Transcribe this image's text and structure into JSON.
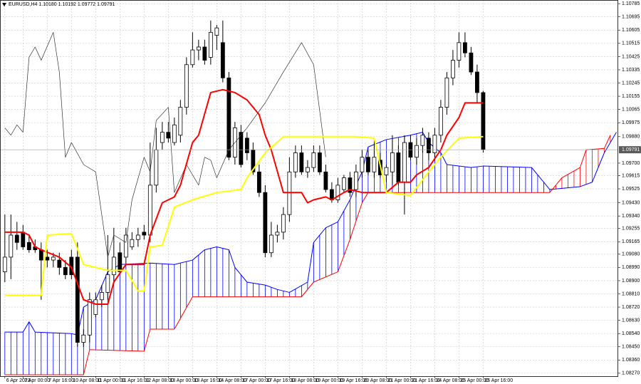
{
  "chart_data": {
    "type": "candlestick",
    "title": "EURUSD,H4 1.10180 1.10192 1.09772 1.09791",
    "xlim": [
      -0.8,
      101.3
    ],
    "ylim": [
      1.0825,
      1.1081
    ],
    "grid": true,
    "current_price": 1.09791,
    "up_color": "#ffffff",
    "down_color": "#000000",
    "xticks": [
      {
        "value": 0,
        "label": "6 Apr 2023"
      },
      {
        "value": 3,
        "label": "7 Apr 00:00"
      },
      {
        "value": 7,
        "label": "7 Apr 16:00"
      },
      {
        "value": 11,
        "label": "10 Apr 08:00"
      },
      {
        "value": 15,
        "label": "11 Apr 00:00"
      },
      {
        "value": 19,
        "label": "11 Apr 16:00"
      },
      {
        "value": 23,
        "label": "12 Apr 08:00"
      },
      {
        "value": 27,
        "label": "13 Apr 00:00"
      },
      {
        "value": 31,
        "label": "13 Apr 16:00"
      },
      {
        "value": 35,
        "label": "14 Apr 08:00"
      },
      {
        "value": 39,
        "label": "17 Apr 00:00"
      },
      {
        "value": 43,
        "label": "17 Apr 16:00"
      },
      {
        "value": 47,
        "label": "18 Apr 08:00"
      },
      {
        "value": 51,
        "label": "19 Apr 00:00"
      },
      {
        "value": 55,
        "label": "19 Apr 16:00"
      },
      {
        "value": 59,
        "label": "20 Apr 08:00"
      },
      {
        "value": 63,
        "label": "21 Apr 00:00"
      },
      {
        "value": 67,
        "label": "21 Apr 16:00"
      },
      {
        "value": 71,
        "label": "24 Apr 08:00"
      },
      {
        "value": 75,
        "label": "25 Apr 00:00"
      },
      {
        "value": 79,
        "label": "25 Apr 16:00"
      }
    ],
    "yticks": [
      1.10785,
      1.10695,
      1.10605,
      1.10515,
      1.10425,
      1.10335,
      1.10245,
      1.10155,
      1.10065,
      1.09975,
      {
        "value": 1.0988,
        "label": "1.09880"
      },
      {
        "value": 1.097,
        "label": "1.09700"
      },
      1.09615,
      1.09525,
      {
        "value": 1.0943,
        "label": "1.09430"
      },
      {
        "value": 1.0934,
        "label": "1.09340"
      },
      1.09255,
      1.09165,
      {
        "value": 1.0908,
        "label": "1.09080"
      },
      {
        "value": 1.0899,
        "label": "1.08990"
      },
      {
        "value": 1.089,
        "label": "1.08900"
      },
      {
        "value": 1.0881,
        "label": "1.08810"
      },
      {
        "value": 1.0872,
        "label": "1.08720"
      },
      {
        "value": 1.0863,
        "label": "1.08630"
      },
      {
        "value": 1.0854,
        "label": "1.08540"
      },
      {
        "value": 1.0845,
        "label": "1.08450"
      },
      {
        "value": 1.0836,
        "label": "1.08360"
      },
      {
        "value": 1.0827,
        "label": "1.08270"
      }
    ],
    "series": [
      {
        "type": "candlestick",
        "x": [
          0,
          1,
          2,
          3,
          4,
          5,
          6,
          7,
          8,
          9,
          10,
          11,
          12,
          13,
          14,
          15,
          16,
          17,
          18,
          19,
          20,
          21,
          22,
          23,
          24,
          25,
          26,
          27,
          28,
          29,
          30,
          31,
          32,
          33,
          34,
          35,
          36,
          37,
          38,
          39,
          40,
          41,
          42,
          43,
          44,
          45,
          46,
          47,
          48,
          49,
          50,
          51,
          52,
          53,
          54,
          55,
          56,
          57,
          58,
          59,
          60,
          61,
          62,
          63,
          64,
          65,
          66,
          67,
          68,
          69,
          70,
          71,
          72,
          73,
          74,
          75,
          76,
          77,
          78,
          79
        ],
        "open": [
          1.0896,
          1.0906,
          1.0921,
          1.0923,
          1.0916,
          1.0913,
          1.0911,
          1.0906,
          1.0904,
          1.0904,
          1.0899,
          1.0906,
          1.0906,
          1.0848,
          1.0853,
          1.0867,
          1.0877,
          1.0882,
          1.0894,
          1.0909,
          1.0906,
          1.0913,
          1.0918,
          1.0923,
          1.0921,
          1.0955,
          1.0984,
          1.0991,
          1.0984,
          1.0989,
          1.1008,
          1.1037,
          1.1047,
          1.1049,
          1.1042,
          1.1057,
          1.1052,
          1.1028,
          1.0974,
          1.0991,
          1.0987,
          1.0979,
          1.0964,
          1.095,
          1.0909,
          1.0921,
          1.0923,
          1.0935,
          1.0964,
          1.0977,
          1.0964,
          1.0967,
          1.0977,
          1.0964,
          1.0952,
          1.0945,
          1.0952,
          1.096,
          1.0952,
          1.0964,
          1.0974,
          1.0964,
          1.0972,
          1.0962,
          1.0964,
          1.0977,
          1.0957,
          1.0984,
          1.0974,
          1.0982,
          1.0987,
          1.0977,
          1.0989,
          1.1008,
          1.1028,
          1.104,
          1.1052,
          1.1045,
          1.1032,
          1.1018
        ],
        "high": [
          1.0935,
          1.0935,
          1.093,
          1.0928,
          1.0921,
          1.0918,
          1.0916,
          1.0911,
          1.0909,
          1.0909,
          1.0904,
          1.0911,
          1.0916,
          1.0857,
          1.0882,
          1.0882,
          1.0887,
          1.0921,
          1.0926,
          1.0916,
          1.0926,
          1.0923,
          1.0926,
          1.0928,
          1.0984,
          1.0994,
          1.0998,
          1.0998,
          1.1001,
          1.1013,
          1.1042,
          1.1059,
          1.1054,
          1.1054,
          1.1067,
          1.1064,
          1.1067,
          1.1032,
          1.0998,
          1.0996,
          1.0991,
          1.0984,
          1.0969,
          1.0955,
          1.093,
          1.0928,
          1.094,
          1.0974,
          1.0982,
          1.0982,
          1.0972,
          1.0982,
          1.0982,
          1.0969,
          1.0957,
          1.096,
          1.0962,
          1.0964,
          1.0969,
          1.0979,
          1.0979,
          1.0987,
          1.0977,
          1.0969,
          1.0989,
          1.0982,
          1.0989,
          1.0989,
          1.0987,
          1.0994,
          1.0991,
          1.0994,
          1.1013,
          1.1032,
          1.1047,
          1.1059,
          1.1059,
          1.1049,
          1.1037,
          1.10192
        ],
        "low": [
          1.0889,
          1.0891,
          1.0911,
          1.0911,
          1.0909,
          1.0909,
          1.0877,
          1.0899,
          1.0899,
          1.0894,
          1.0891,
          1.0891,
          1.0845,
          1.0845,
          1.0848,
          1.0865,
          1.0872,
          1.0877,
          1.0889,
          1.0894,
          1.0901,
          1.0911,
          1.0913,
          1.0918,
          1.0916,
          1.095,
          1.0979,
          1.0984,
          1.0982,
          1.0984,
          1.1003,
          1.1035,
          1.104,
          1.1037,
          1.1037,
          1.1047,
          1.1025,
          1.0972,
          1.0969,
          1.0967,
          1.0972,
          1.0962,
          1.0947,
          1.0906,
          1.0906,
          1.0916,
          1.0918,
          1.093,
          1.096,
          1.0962,
          1.096,
          1.0964,
          1.0962,
          1.095,
          1.0943,
          1.0943,
          1.095,
          1.0947,
          1.0947,
          1.096,
          1.0962,
          1.096,
          1.096,
          1.0957,
          1.0955,
          1.0955,
          1.0935,
          1.0972,
          1.0969,
          1.0977,
          1.0972,
          1.0972,
          1.0984,
          1.1003,
          1.1023,
          1.1035,
          1.1042,
          1.103,
          1.1011,
          1.09772
        ],
        "close": [
          1.0906,
          1.0921,
          1.0916,
          1.0913,
          1.0911,
          1.0911,
          1.0904,
          1.0904,
          1.0906,
          1.0899,
          1.0894,
          1.0894,
          1.0848,
          1.0853,
          1.0877,
          1.0877,
          1.0882,
          1.0894,
          1.0906,
          1.0896,
          1.0921,
          1.0918,
          1.0921,
          1.0921,
          1.0955,
          1.0979,
          1.0991,
          1.0987,
          1.0996,
          1.1008,
          1.1037,
          1.1047,
          1.1049,
          1.104,
          1.1059,
          1.1062,
          1.1028,
          1.0974,
          1.0994,
          1.0969,
          1.0977,
          1.0964,
          1.095,
          1.0909,
          1.0921,
          1.0923,
          1.0935,
          1.0964,
          1.0977,
          1.0964,
          1.0967,
          1.0977,
          1.0964,
          1.0952,
          1.0945,
          1.0955,
          1.096,
          1.095,
          1.0964,
          1.0974,
          1.0964,
          1.0974,
          1.0962,
          1.0967,
          1.0977,
          1.0957,
          1.0984,
          1.0974,
          1.0982,
          1.0989,
          1.0977,
          1.0989,
          1.1008,
          1.1028,
          1.104,
          1.1052,
          1.1045,
          1.1032,
          1.1018,
          1.09791
        ]
      },
      {
        "type": "span_a",
        "color": "#0000ff",
        "width": 1,
        "x": [
          0,
          3,
          4,
          5,
          11,
          12,
          13,
          15,
          17,
          19,
          24,
          28,
          31,
          33,
          35,
          37,
          38,
          40,
          43,
          45,
          47,
          50,
          51,
          53,
          55,
          57,
          58,
          59,
          60,
          63,
          67,
          69,
          70,
          72,
          73,
          77,
          79,
          87,
          90,
          95,
          97,
          99,
          101
        ],
        "values": [
          1.0855,
          1.0855,
          1.0862,
          1.0855,
          1.0854,
          1.0853,
          1.0872,
          1.0877,
          1.0896,
          1.0901,
          1.0902,
          1.0901,
          1.0904,
          1.0911,
          1.0913,
          1.0911,
          1.0899,
          1.0889,
          1.0887,
          1.0884,
          1.0882,
          1.0889,
          1.0916,
          1.0926,
          1.093,
          1.0945,
          1.0955,
          1.0964,
          1.0981,
          1.0986,
          1.0989,
          1.0991,
          1.0984,
          1.0977,
          1.0969,
          1.0967,
          1.0968,
          1.0967,
          1.0952,
          1.0954,
          1.0957,
          1.0977,
          1.0991
        ]
      },
      {
        "type": "span_b",
        "color": "#ff0000",
        "width": 1,
        "x": [
          0,
          13,
          14,
          23,
          24,
          28,
          31,
          49,
          51,
          55,
          57,
          59,
          60,
          90,
          92,
          95,
          96,
          99,
          100
        ],
        "values": [
          1.0826,
          1.0826,
          1.0843,
          1.0842,
          1.0857,
          1.0857,
          1.0879,
          1.0879,
          1.0889,
          1.0896,
          1.0918,
          1.0943,
          1.095,
          1.095,
          1.096,
          1.0967,
          1.0979,
          1.098,
          1.0989
        ]
      },
      {
        "type": "line",
        "color": "#333333",
        "width": 0.7,
        "x": [
          0,
          1,
          2,
          3,
          4,
          5,
          6,
          8,
          9,
          10,
          11,
          13,
          15,
          17,
          18,
          20,
          21,
          23,
          24,
          25,
          27,
          28,
          30,
          32,
          33,
          34,
          35,
          37,
          40,
          43,
          46,
          49,
          51,
          53
        ],
        "values": [
          1.0994,
          1.0989,
          1.0996,
          1.0991,
          1.1042,
          1.1049,
          1.104,
          1.1059,
          1.1032,
          1.0974,
          1.0984,
          1.0969,
          1.0964,
          1.0906,
          1.0921,
          1.0916,
          1.0945,
          1.0974,
          1.0964,
          1.0999,
          1.1008,
          1.095,
          1.0969,
          1.0955,
          1.0974,
          1.0972,
          1.096,
          1.0979,
          1.0994,
          1.1011,
          1.1032,
          1.1052,
          1.1037,
          1.0974
        ]
      },
      {
        "type": "line",
        "color": "#ff0000",
        "width": 2,
        "x": [
          0,
          3,
          4,
          5,
          6,
          9,
          11,
          13,
          15,
          17,
          18,
          20,
          23,
          24,
          26,
          28,
          29,
          31,
          32,
          34,
          36,
          38,
          40,
          42,
          43,
          44,
          46,
          49,
          50,
          51,
          53,
          54,
          56,
          57,
          59,
          63,
          65,
          67,
          68,
          70,
          72,
          73,
          75,
          76,
          79
        ],
        "values": [
          1.0923,
          1.0923,
          1.0921,
          1.0913,
          1.0911,
          1.0906,
          1.0899,
          1.0877,
          1.0874,
          1.0874,
          1.0889,
          1.0901,
          1.0901,
          1.0921,
          1.0943,
          1.0947,
          1.0955,
          1.0984,
          1.0989,
          1.1018,
          1.102,
          1.1018,
          1.1013,
          1.1003,
          1.0989,
          1.0979,
          1.095,
          1.095,
          1.0943,
          1.0945,
          1.0947,
          1.0945,
          1.095,
          1.0952,
          1.095,
          1.095,
          1.0957,
          1.0957,
          1.0962,
          1.0967,
          1.0979,
          1.0989,
          1.1001,
          1.1011,
          1.1011
        ]
      },
      {
        "type": "line",
        "color": "#ffff00",
        "width": 2,
        "x": [
          0,
          6,
          7,
          11,
          13,
          17,
          20,
          22,
          23,
          24,
          26,
          28,
          31,
          35,
          39,
          40,
          43,
          46,
          58,
          61,
          63,
          67,
          70,
          72,
          75,
          79
        ],
        "values": [
          1.088,
          1.088,
          1.0921,
          1.0922,
          1.0901,
          1.0897,
          1.0897,
          1.0883,
          1.0883,
          1.0913,
          1.0914,
          1.094,
          1.0945,
          1.095,
          1.0952,
          1.096,
          1.0977,
          1.0988,
          1.0988,
          1.0987,
          1.095,
          1.0948,
          1.0964,
          1.0974,
          1.0987,
          1.0988
        ]
      }
    ]
  }
}
